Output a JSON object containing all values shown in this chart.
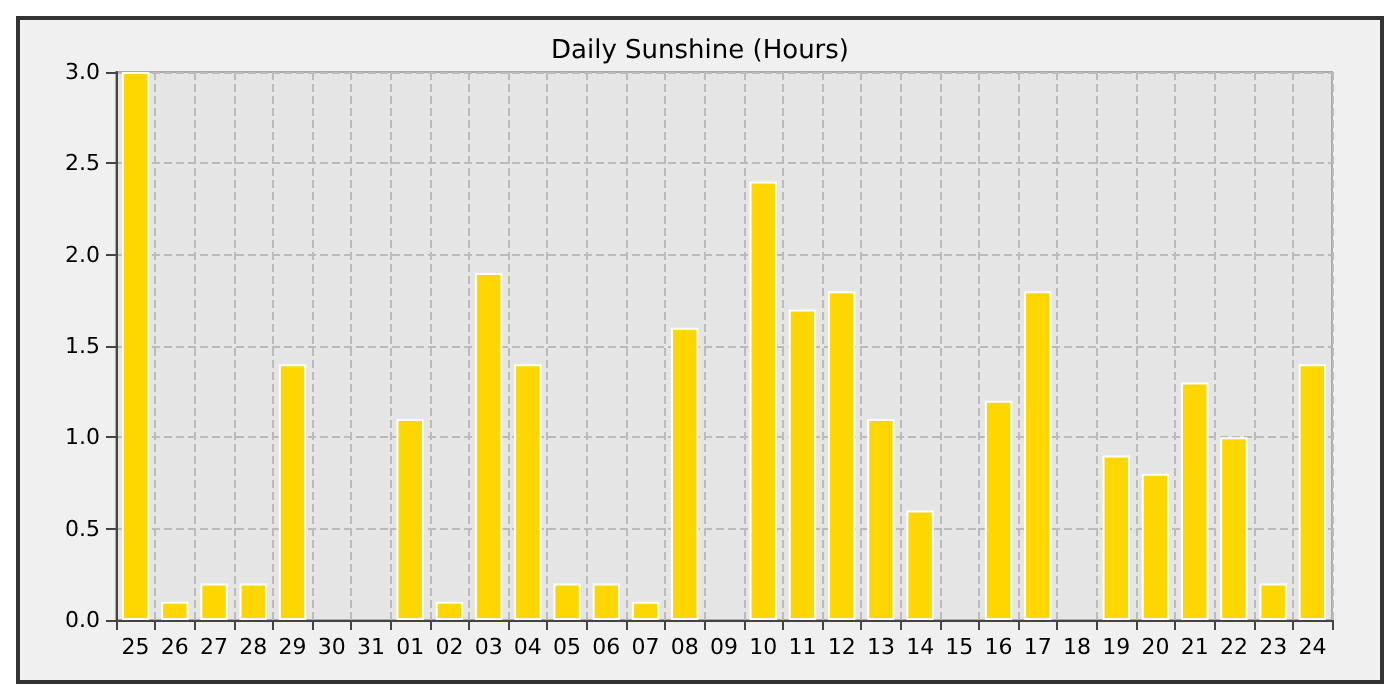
{
  "chart_data": {
    "type": "bar",
    "title": "Daily Sunshine (Hours)",
    "categories": [
      "25",
      "26",
      "27",
      "28",
      "29",
      "30",
      "31",
      "01",
      "02",
      "03",
      "04",
      "05",
      "06",
      "07",
      "08",
      "09",
      "10",
      "11",
      "12",
      "13",
      "14",
      "15",
      "16",
      "17",
      "18",
      "19",
      "20",
      "21",
      "22",
      "23",
      "24"
    ],
    "values": [
      3.0,
      0.1,
      0.2,
      0.2,
      1.4,
      0,
      0,
      1.1,
      0.1,
      1.9,
      1.4,
      0.2,
      0.2,
      0.1,
      1.6,
      0,
      2.4,
      1.7,
      1.8,
      1.1,
      0.6,
      0,
      1.2,
      1.8,
      0,
      0.9,
      0.8,
      1.3,
      1.0,
      0.2,
      1.4
    ],
    "color": "#ffd700",
    "ylim": [
      0,
      3
    ],
    "yticks": [
      {
        "value": 0,
        "label": "0.0"
      },
      {
        "value": 0.5,
        "label": "0.5"
      },
      {
        "value": 1,
        "label": "1.0"
      },
      {
        "value": 1.5,
        "label": "1.5"
      },
      {
        "value": 2,
        "label": "2.0"
      },
      {
        "value": 2.5,
        "label": "2.5"
      },
      {
        "value": 3,
        "label": "3.0"
      }
    ],
    "grid": true
  }
}
